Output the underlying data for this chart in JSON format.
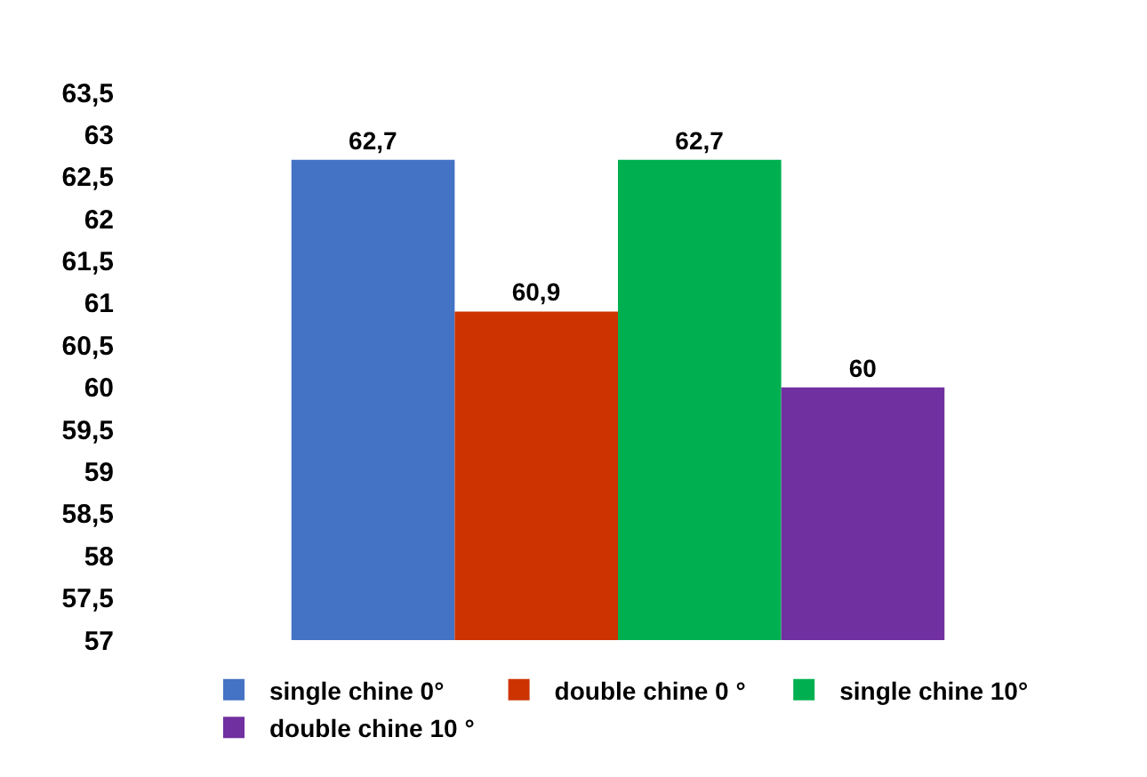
{
  "chart_data": {
    "type": "bar",
    "categories": [
      null
    ],
    "series": [
      {
        "name": "single chine 0°",
        "color": "#4472c4",
        "values": [
          62.7
        ],
        "value_labels": [
          "62,7"
        ]
      },
      {
        "name": "double chine 0 °",
        "color": "#cc3300",
        "values": [
          60.9
        ],
        "value_labels": [
          "60,9"
        ]
      },
      {
        "name": "single chine 10°",
        "color": "#00b050",
        "values": [
          62.7
        ],
        "value_labels": [
          "62,7"
        ]
      },
      {
        "name": "double chine 10 °",
        "color": "#7030a0",
        "values": [
          60
        ],
        "value_labels": [
          "60"
        ]
      }
    ],
    "ylim": [
      57,
      63.5
    ],
    "yticks": [
      {
        "value": 57,
        "label": "57"
      },
      {
        "value": 57.5,
        "label": "57,5"
      },
      {
        "value": 58,
        "label": "58"
      },
      {
        "value": 58.5,
        "label": "58,5"
      },
      {
        "value": 59,
        "label": "59"
      },
      {
        "value": 59.5,
        "label": "59,5"
      },
      {
        "value": 60,
        "label": "60"
      },
      {
        "value": 60.5,
        "label": "60,5"
      },
      {
        "value": 61,
        "label": "61"
      },
      {
        "value": 61.5,
        "label": "61,5"
      },
      {
        "value": 62,
        "label": "62"
      },
      {
        "value": 62.5,
        "label": "62,5"
      },
      {
        "value": 63,
        "label": "63"
      },
      {
        "value": 63.5,
        "label": "63,5"
      }
    ],
    "grid": false,
    "legend": "bottom"
  }
}
